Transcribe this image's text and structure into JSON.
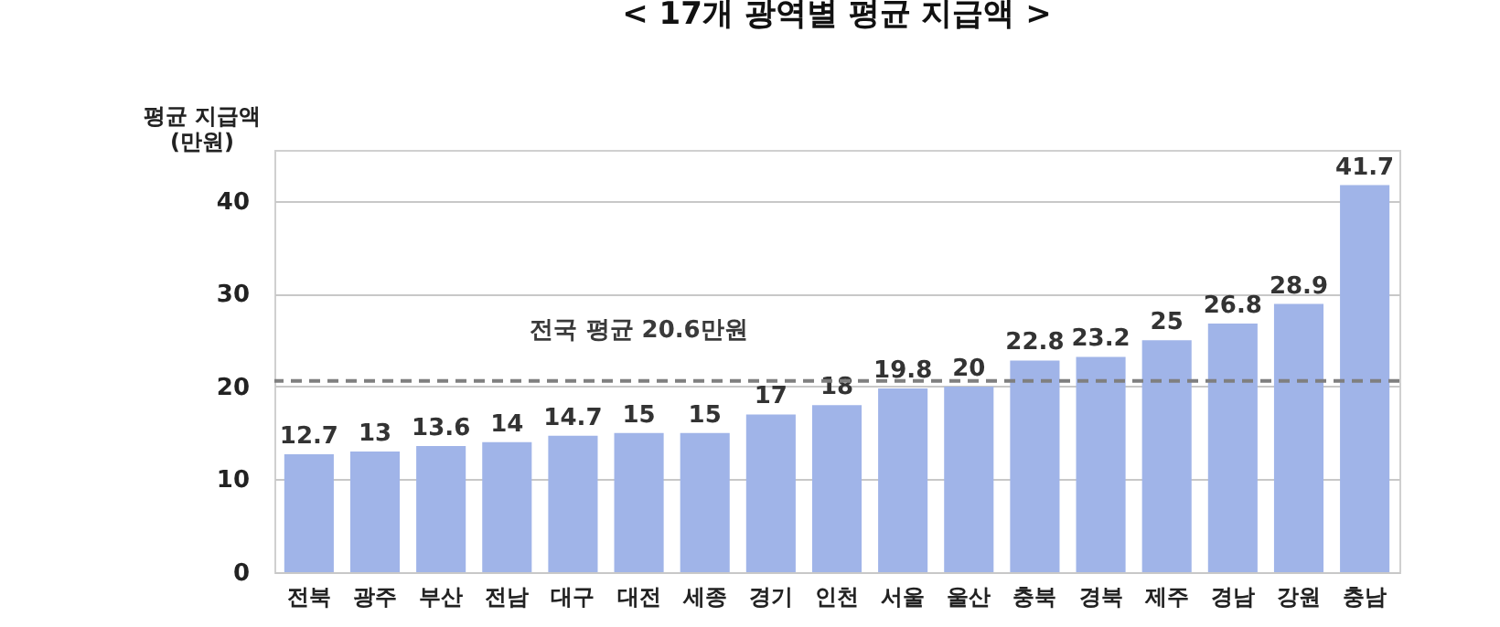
{
  "chart_data": {
    "type": "bar",
    "title": "< 17개 광역별 평균 지급액 >",
    "ylabel": "평균 지급액\n(만원)",
    "categories": [
      "전북",
      "광주",
      "부산",
      "전남",
      "대구",
      "대전",
      "세종",
      "경기",
      "인천",
      "서울",
      "울산",
      "충북",
      "경북",
      "제주",
      "경남",
      "강원",
      "충남"
    ],
    "values": [
      12.7,
      13,
      13.6,
      14,
      14.7,
      15,
      15,
      17,
      18,
      19.8,
      20,
      22.8,
      23.2,
      25,
      26.8,
      28.9,
      41.7
    ],
    "color": "#a0b4e8",
    "ylim": [
      0,
      45.5
    ],
    "yticks": [
      0,
      10,
      20,
      30,
      40
    ],
    "grid": "y",
    "data_labels": true,
    "ref_lines": [
      {
        "axis": "y",
        "value": 20.6,
        "label": "전국 평균 20.6만원",
        "color": "#7f7f7f",
        "line_style": "dashed"
      }
    ]
  }
}
